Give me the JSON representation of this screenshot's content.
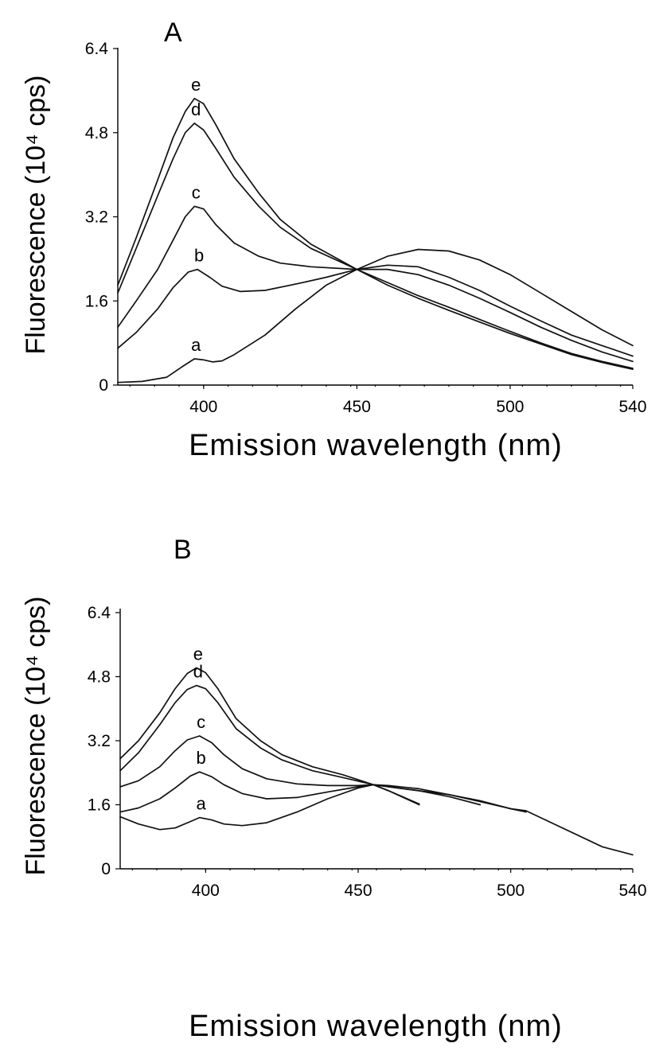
{
  "chart_data": [
    {
      "type": "line",
      "panel_label": "A",
      "xlabel": "Emission wavelength (nm)",
      "ylabel": "Fluorescence (10⁴ cps)",
      "xlim": [
        372,
        540
      ],
      "ylim": [
        0,
        6.4
      ],
      "x_ticks": [
        400,
        450,
        500,
        540
      ],
      "x_tick_labels": [
        "400",
        "450",
        "500",
        "540"
      ],
      "y_ticks": [
        0,
        1.6,
        3.2,
        4.8,
        6.4
      ],
      "y_tick_labels": [
        "0",
        "1.6",
        "3.2",
        "4.8",
        "6.4"
      ],
      "grid": false,
      "series": [
        {
          "name": "a",
          "x": [
            372,
            380,
            388,
            393,
            397,
            400,
            403,
            406,
            410,
            420,
            430,
            440,
            450,
            460,
            470,
            480,
            490,
            500,
            510,
            520,
            530,
            540
          ],
          "y": [
            0.05,
            0.07,
            0.15,
            0.35,
            0.5,
            0.48,
            0.44,
            0.46,
            0.58,
            0.95,
            1.45,
            1.9,
            2.2,
            2.45,
            2.58,
            2.55,
            2.38,
            2.1,
            1.75,
            1.4,
            1.05,
            0.75
          ]
        },
        {
          "name": "b",
          "x": [
            372,
            378,
            385,
            390,
            395,
            398,
            402,
            406,
            412,
            420,
            430,
            440,
            450,
            460,
            470,
            480,
            490,
            500,
            510,
            520,
            530,
            540
          ],
          "y": [
            0.7,
            1.0,
            1.45,
            1.85,
            2.15,
            2.2,
            2.05,
            1.88,
            1.78,
            1.8,
            1.92,
            2.05,
            2.2,
            2.28,
            2.25,
            2.05,
            1.8,
            1.5,
            1.22,
            0.95,
            0.75,
            0.55
          ]
        },
        {
          "name": "c",
          "x": [
            372,
            378,
            385,
            390,
            394,
            397,
            400,
            404,
            410,
            418,
            425,
            435,
            450,
            460,
            470,
            480,
            490,
            500,
            510,
            520,
            530,
            540
          ],
          "y": [
            1.1,
            1.6,
            2.2,
            2.75,
            3.2,
            3.4,
            3.35,
            3.05,
            2.7,
            2.45,
            2.32,
            2.25,
            2.2,
            2.2,
            2.1,
            1.9,
            1.65,
            1.38,
            1.1,
            0.85,
            0.63,
            0.45
          ]
        },
        {
          "name": "d",
          "x": [
            372,
            378,
            385,
            390,
            394,
            397,
            400,
            404,
            410,
            418,
            425,
            435,
            450,
            460,
            470,
            480,
            490,
            500,
            510,
            520,
            530,
            540
          ],
          "y": [
            1.75,
            2.6,
            3.6,
            4.3,
            4.8,
            4.98,
            4.85,
            4.5,
            3.95,
            3.4,
            3.0,
            2.6,
            2.2,
            1.95,
            1.7,
            1.48,
            1.25,
            1.02,
            0.8,
            0.6,
            0.45,
            0.32
          ]
        },
        {
          "name": "e",
          "x": [
            372,
            378,
            385,
            390,
            394,
            397,
            400,
            404,
            410,
            418,
            425,
            435,
            450,
            460,
            470,
            480,
            490,
            500,
            510,
            520,
            530,
            540
          ],
          "y": [
            1.9,
            2.8,
            3.9,
            4.7,
            5.2,
            5.45,
            5.35,
            4.95,
            4.3,
            3.65,
            3.15,
            2.68,
            2.2,
            1.9,
            1.65,
            1.42,
            1.2,
            0.98,
            0.78,
            0.58,
            0.43,
            0.3
          ]
        }
      ]
    },
    {
      "type": "line",
      "panel_label": "B",
      "xlabel": "Emission wavelength (nm)",
      "ylabel": "Fluorescence (10⁴ cps)",
      "xlim": [
        372,
        540
      ],
      "ylim": [
        0,
        6.4
      ],
      "x_ticks": [
        400,
        450,
        500,
        540
      ],
      "x_tick_labels": [
        "400",
        "450",
        "500",
        "540"
      ],
      "y_ticks": [
        0,
        1.6,
        3.2,
        4.8,
        6.4
      ],
      "y_tick_labels": [
        "0",
        "1.6",
        "3.2",
        "4.8",
        "6.4"
      ],
      "grid": false,
      "series": [
        {
          "name": "a",
          "x": [
            372,
            378,
            385,
            390,
            395,
            398,
            402,
            406,
            412,
            420,
            430,
            440,
            450,
            455,
            460,
            470,
            480,
            490,
            500,
            505,
            530,
            540
          ],
          "y": [
            1.3,
            1.12,
            0.98,
            1.02,
            1.18,
            1.28,
            1.22,
            1.12,
            1.08,
            1.15,
            1.42,
            1.75,
            2.02,
            2.1,
            2.05,
            1.95,
            1.85,
            1.7,
            1.5,
            1.45,
            0.55,
            0.35
          ]
        },
        {
          "name": "b",
          "x": [
            372,
            378,
            385,
            390,
            395,
            398,
            402,
            406,
            412,
            420,
            430,
            440,
            450,
            455,
            460,
            470,
            480,
            490,
            500,
            505
          ],
          "y": [
            1.42,
            1.52,
            1.75,
            2.02,
            2.32,
            2.42,
            2.3,
            2.1,
            1.88,
            1.75,
            1.78,
            1.92,
            2.05,
            2.1,
            2.08,
            2.0,
            1.85,
            1.68,
            1.5,
            1.42
          ]
        },
        {
          "name": "c",
          "x": [
            372,
            378,
            385,
            390,
            394,
            398,
            402,
            406,
            412,
            420,
            430,
            440,
            450,
            455,
            460,
            470,
            480,
            490
          ],
          "y": [
            2.05,
            2.2,
            2.55,
            2.95,
            3.22,
            3.32,
            3.15,
            2.85,
            2.5,
            2.25,
            2.12,
            2.08,
            2.08,
            2.1,
            2.05,
            1.95,
            1.8,
            1.6
          ]
        },
        {
          "name": "d",
          "x": [
            372,
            378,
            385,
            390,
            394,
            397,
            400,
            404,
            410,
            418,
            425,
            435,
            445,
            455,
            460,
            470
          ],
          "y": [
            2.45,
            2.9,
            3.6,
            4.15,
            4.48,
            4.58,
            4.5,
            4.15,
            3.5,
            3.02,
            2.72,
            2.45,
            2.28,
            2.1,
            1.95,
            1.62
          ]
        },
        {
          "name": "e",
          "x": [
            372,
            378,
            385,
            390,
            394,
            397,
            400,
            404,
            410,
            418,
            425,
            435,
            445,
            455,
            460,
            470
          ],
          "y": [
            2.75,
            3.2,
            3.9,
            4.5,
            4.88,
            5.02,
            4.9,
            4.5,
            3.75,
            3.2,
            2.85,
            2.55,
            2.35,
            2.1,
            1.95,
            1.6
          ]
        }
      ]
    }
  ]
}
